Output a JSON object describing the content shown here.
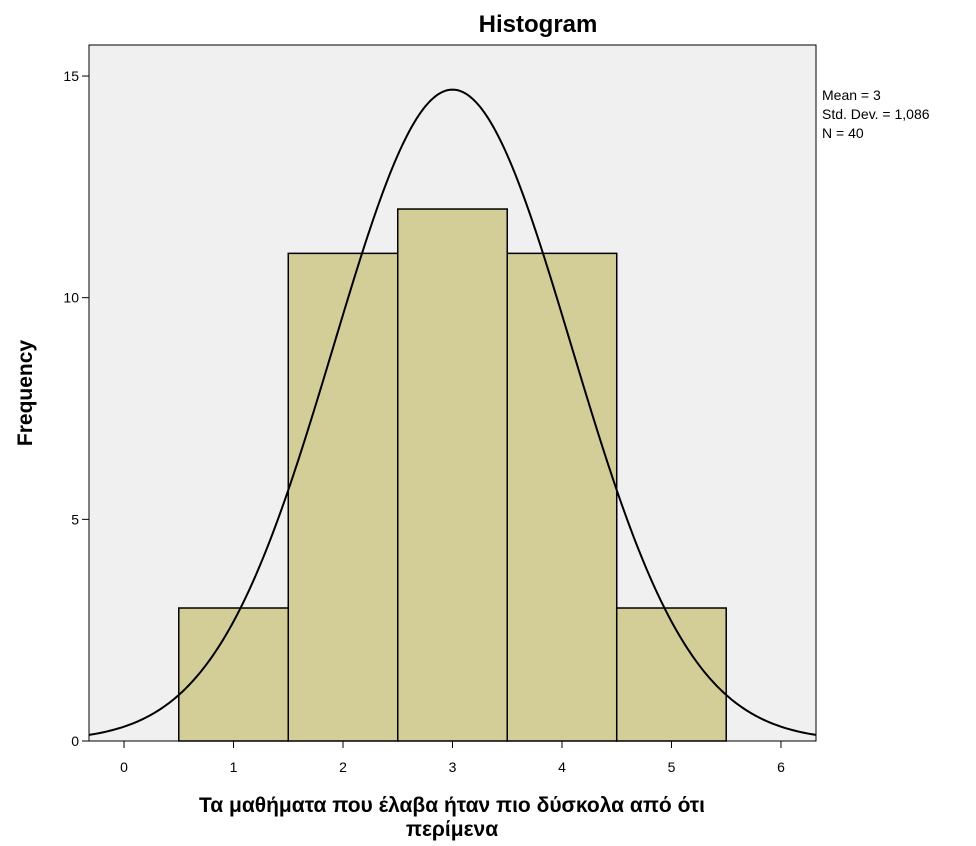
{
  "chart_data": {
    "type": "bar",
    "title": "Histogram",
    "xlabel_lines": [
      "Τα μαθήματα που έλαβα ήταν πιο δύσκολα από ότι",
      "περίμενα"
    ],
    "ylabel": "Frequency",
    "categories": [
      1,
      2,
      3,
      4,
      5
    ],
    "values": [
      3,
      11,
      12,
      11,
      3
    ],
    "bin_width": 1,
    "xlim": [
      -0.32,
      6.32
    ],
    "ylim": [
      0,
      15.7
    ],
    "xticks": [
      0,
      1,
      2,
      3,
      4,
      5,
      6
    ],
    "yticks": [
      0,
      5,
      10,
      15
    ],
    "normal_curve": {
      "mean": 3,
      "sd": 1.086,
      "n": 40
    },
    "stats_text": [
      "Mean = 3",
      "Std. Dev. = 1,086",
      "N = 40"
    ],
    "grid": false,
    "legend": "none",
    "colors": {
      "plot_background": "#f0f0f0",
      "bar_fill": "#d3ce98",
      "bar_stroke": "#000000",
      "curve": "#000000",
      "frame": "#000000"
    }
  }
}
